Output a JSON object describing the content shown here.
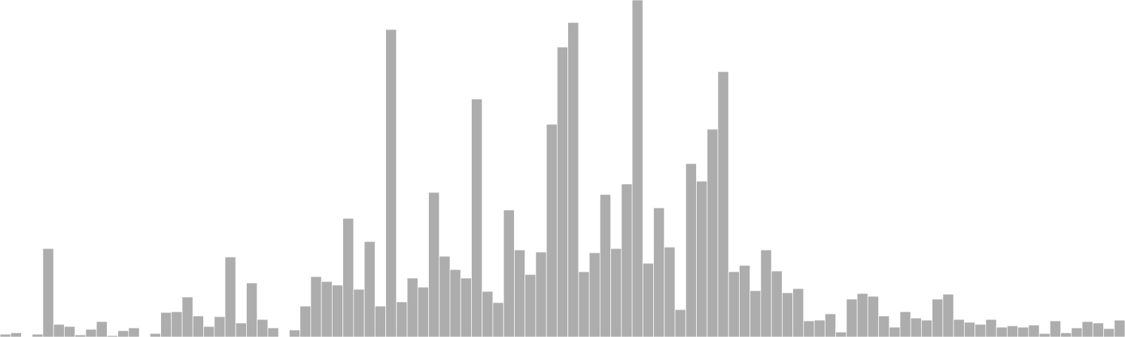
{
  "chart_data": {
    "type": "bar",
    "bar_color": "#adadad",
    "background": "#ffffff",
    "grid": false,
    "axes_visible": false,
    "ylim": [
      0,
      480
    ],
    "values": [
      4,
      6,
      0,
      4,
      126,
      18,
      15,
      3,
      11,
      22,
      2,
      9,
      13,
      0,
      5,
      35,
      36,
      57,
      30,
      15,
      29,
      114,
      20,
      77,
      25,
      13,
      0,
      10,
      44,
      86,
      79,
      74,
      169,
      68,
      136,
      44,
      438,
      50,
      84,
      71,
      206,
      115,
      96,
      84,
      339,
      65,
      49,
      181,
      124,
      89,
      121,
      303,
      413,
      448,
      93,
      120,
      203,
      126,
      218,
      480,
      105,
      184,
      128,
      39,
      247,
      222,
      296,
      378,
      93,
      102,
      66,
      124,
      94,
      63,
      69,
      23,
      24,
      33,
      7,
      54,
      62,
      58,
      30,
      14,
      36,
      27,
      24,
      54,
      61,
      25,
      21,
      18,
      25,
      14,
      16,
      14,
      17,
      5,
      23,
      6,
      13,
      22,
      20,
      12,
      24
    ]
  }
}
